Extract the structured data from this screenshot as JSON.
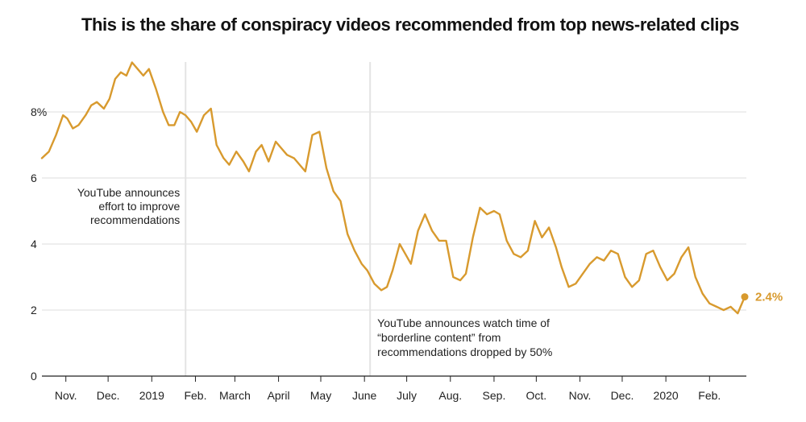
{
  "chart_data": {
    "type": "line",
    "title": "This is the share of conspiracy videos recommended from top news-related clips",
    "xlabel": "",
    "ylabel": "",
    "ylim": [
      0,
      10
    ],
    "y_ticks": [
      {
        "value": 0,
        "label": "0"
      },
      {
        "value": 2,
        "label": "2"
      },
      {
        "value": 4,
        "label": "4"
      },
      {
        "value": 6,
        "label": "6"
      },
      {
        "value": 8,
        "label": "8%"
      }
    ],
    "x_ticks": [
      "Nov.",
      "Dec.",
      "2019",
      "Feb.",
      "March",
      "April",
      "May",
      "June",
      "July",
      "Aug.",
      "Sep.",
      "Oct.",
      "Nov.",
      "Dec.",
      "2020",
      "Feb."
    ],
    "grid": "horizontal",
    "line_color": "#D89A2E",
    "series": [
      {
        "x": [
          "Oct. 15, 2018",
          "Oct. 20, 2018",
          "Oct. 25, 2018",
          "Oct. 30, 2018",
          "Nov. 2, 2018",
          "Nov. 6, 2018",
          "Nov. 10, 2018",
          "Nov. 15, 2018",
          "Nov. 19, 2018",
          "Nov. 23, 2018",
          "Nov. 28, 2018",
          "Dec. 2, 2018",
          "Dec. 6, 2018",
          "Dec. 10, 2018",
          "Dec. 14, 2018",
          "Dec. 18, 2018",
          "Dec. 22, 2018",
          "Dec. 26, 2018",
          "Dec. 30, 2018",
          "Jan. 4, 2019",
          "Jan. 9, 2019",
          "Jan. 13, 2019",
          "Jan. 17, 2019",
          "Jan. 21, 2019",
          "Jan. 25, 2019",
          "Jan. 29, 2019",
          "Feb. 2, 2019",
          "Feb. 7, 2019",
          "Feb. 12, 2019",
          "Feb. 16, 2019",
          "Feb. 21, 2019",
          "Feb. 25, 2019",
          "Mar. 2, 2019",
          "Mar. 7, 2019",
          "Mar. 11, 2019",
          "Mar. 16, 2019",
          "Mar. 20, 2019",
          "Mar. 25, 2019",
          "Mar. 30, 2019",
          "Apr. 3, 2019",
          "Apr. 7, 2019",
          "Apr. 12, 2019",
          "Apr. 16, 2019",
          "Apr. 20, 2019",
          "Apr. 25, 2019",
          "Apr. 30, 2019",
          "May 5, 2019",
          "May 10, 2019",
          "May 15, 2019",
          "May 20, 2019",
          "May 25, 2019",
          "May 30, 2019",
          "Jun. 3, 2019",
          "Jun. 8, 2019",
          "Jun. 13, 2019",
          "Jun. 17, 2019",
          "Jun. 21, 2019",
          "Jun. 26, 2019",
          "Jun. 30, 2019",
          "Jul. 4, 2019",
          "Jul. 9, 2019",
          "Jul. 14, 2019",
          "Jul. 19, 2019",
          "Jul. 24, 2019",
          "Jul. 29, 2019",
          "Aug. 3, 2019",
          "Aug. 8, 2019",
          "Aug. 12, 2019",
          "Aug. 17, 2019",
          "Aug. 22, 2019",
          "Aug. 27, 2019",
          "Sep. 1, 2019",
          "Sep. 5, 2019",
          "Sep. 10, 2019",
          "Sep. 15, 2019",
          "Sep. 20, 2019",
          "Sep. 25, 2019",
          "Sep. 30, 2019",
          "Oct. 5, 2019",
          "Oct. 10, 2019",
          "Oct. 15, 2019",
          "Oct. 19, 2019",
          "Oct. 24, 2019",
          "Oct. 29, 2019",
          "Nov. 3, 2019",
          "Nov. 8, 2019",
          "Nov. 13, 2019",
          "Nov. 18, 2019",
          "Nov. 23, 2019",
          "Nov. 28, 2019",
          "Dec. 3, 2019",
          "Dec. 8, 2019",
          "Dec. 13, 2019",
          "Dec. 18, 2019",
          "Dec. 23, 2019",
          "Dec. 28, 2019",
          "Jan. 2, 2020",
          "Jan. 7, 2020",
          "Jan. 12, 2020",
          "Jan. 17, 2020",
          "Jan. 22, 2020",
          "Jan. 27, 2020",
          "Feb. 1, 2020",
          "Feb. 6, 2020",
          "Feb. 11, 2020",
          "Feb. 16, 2020",
          "Feb. 21, 2020",
          "Feb. 26, 2020"
        ],
        "values": [
          6.6,
          6.8,
          7.3,
          7.9,
          7.8,
          7.5,
          7.6,
          7.9,
          8.2,
          8.3,
          8.1,
          8.4,
          9.0,
          9.2,
          9.1,
          9.5,
          9.3,
          9.1,
          9.3,
          8.7,
          8.0,
          7.6,
          7.6,
          8.0,
          7.9,
          7.7,
          7.4,
          7.9,
          8.1,
          7.0,
          6.6,
          6.4,
          6.8,
          6.5,
          6.2,
          6.8,
          7.0,
          6.5,
          7.1,
          6.9,
          6.7,
          6.6,
          6.4,
          6.2,
          7.3,
          7.4,
          6.3,
          5.6,
          5.3,
          4.3,
          3.8,
          3.4,
          3.2,
          2.8,
          2.6,
          2.7,
          3.2,
          4.0,
          3.7,
          3.4,
          4.4,
          4.9,
          4.4,
          4.1,
          4.1,
          3.0,
          2.9,
          3.1,
          4.2,
          5.1,
          4.9,
          5.0,
          4.9,
          4.1,
          3.7,
          3.6,
          3.8,
          4.7,
          4.2,
          4.5,
          3.9,
          3.3,
          2.7,
          2.8,
          3.1,
          3.4,
          3.6,
          3.5,
          3.8,
          3.7,
          3.0,
          2.7,
          2.9,
          3.7,
          3.8,
          3.3,
          2.9,
          3.1,
          3.6,
          3.9,
          3.0,
          2.5,
          2.2,
          2.1,
          2.0,
          2.1,
          1.9,
          2.4
        ],
        "end_label": "2.4%"
      }
    ],
    "annotations": [
      {
        "event_date": "Jan. 25, 2019",
        "lines": [
          "YouTube announces",
          "effort to improve",
          "recommendations"
        ]
      },
      {
        "event_date": "Jun. 5, 2019",
        "lines": [
          "YouTube announces watch time of",
          "“borderline content” from",
          "recommendations dropped by 50%"
        ]
      }
    ]
  }
}
